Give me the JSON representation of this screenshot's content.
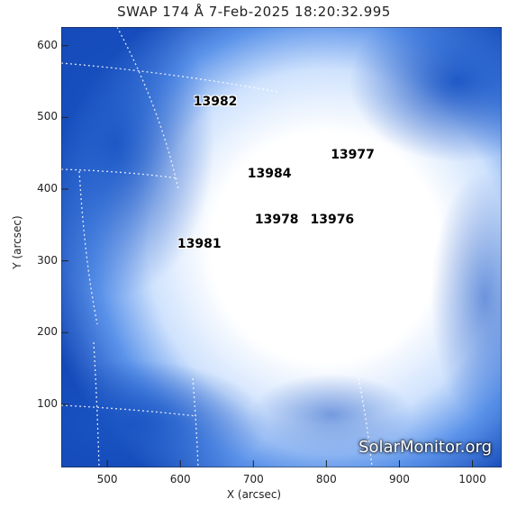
{
  "title": "SWAP 174 Å  7-Feb-2025 18:20:32.995",
  "xlabel": "X (arcsec)",
  "ylabel": "Y (arcsec)",
  "x_ticks": [
    {
      "label": "500",
      "value": 500
    },
    {
      "label": "600",
      "value": 600
    },
    {
      "label": "700",
      "value": 700
    },
    {
      "label": "800",
      "value": 800
    },
    {
      "label": "900",
      "value": 900
    },
    {
      "label": "1000",
      "value": 1000
    }
  ],
  "y_ticks": [
    {
      "label": "100",
      "value": 100
    },
    {
      "label": "200",
      "value": 200
    },
    {
      "label": "300",
      "value": 300
    },
    {
      "label": "400",
      "value": 400
    },
    {
      "label": "500",
      "value": 500
    },
    {
      "label": "600",
      "value": 600
    }
  ],
  "x_range": [
    437,
    1040
  ],
  "y_range": [
    12,
    626
  ],
  "active_regions": [
    {
      "label": "13982",
      "x": 650,
      "y": 520
    },
    {
      "label": "13977",
      "x": 838,
      "y": 446
    },
    {
      "label": "13984",
      "x": 724,
      "y": 420
    },
    {
      "label": "13978",
      "x": 734,
      "y": 356
    },
    {
      "label": "13976",
      "x": 810,
      "y": 356
    },
    {
      "label": "13981",
      "x": 628,
      "y": 322
    }
  ],
  "credit": "SolarMonitor.org",
  "colors": {
    "dark_blue": "#0a3fae",
    "mid_blue": "#3f7fe6",
    "light_blue": "#a9cdfb"
  }
}
